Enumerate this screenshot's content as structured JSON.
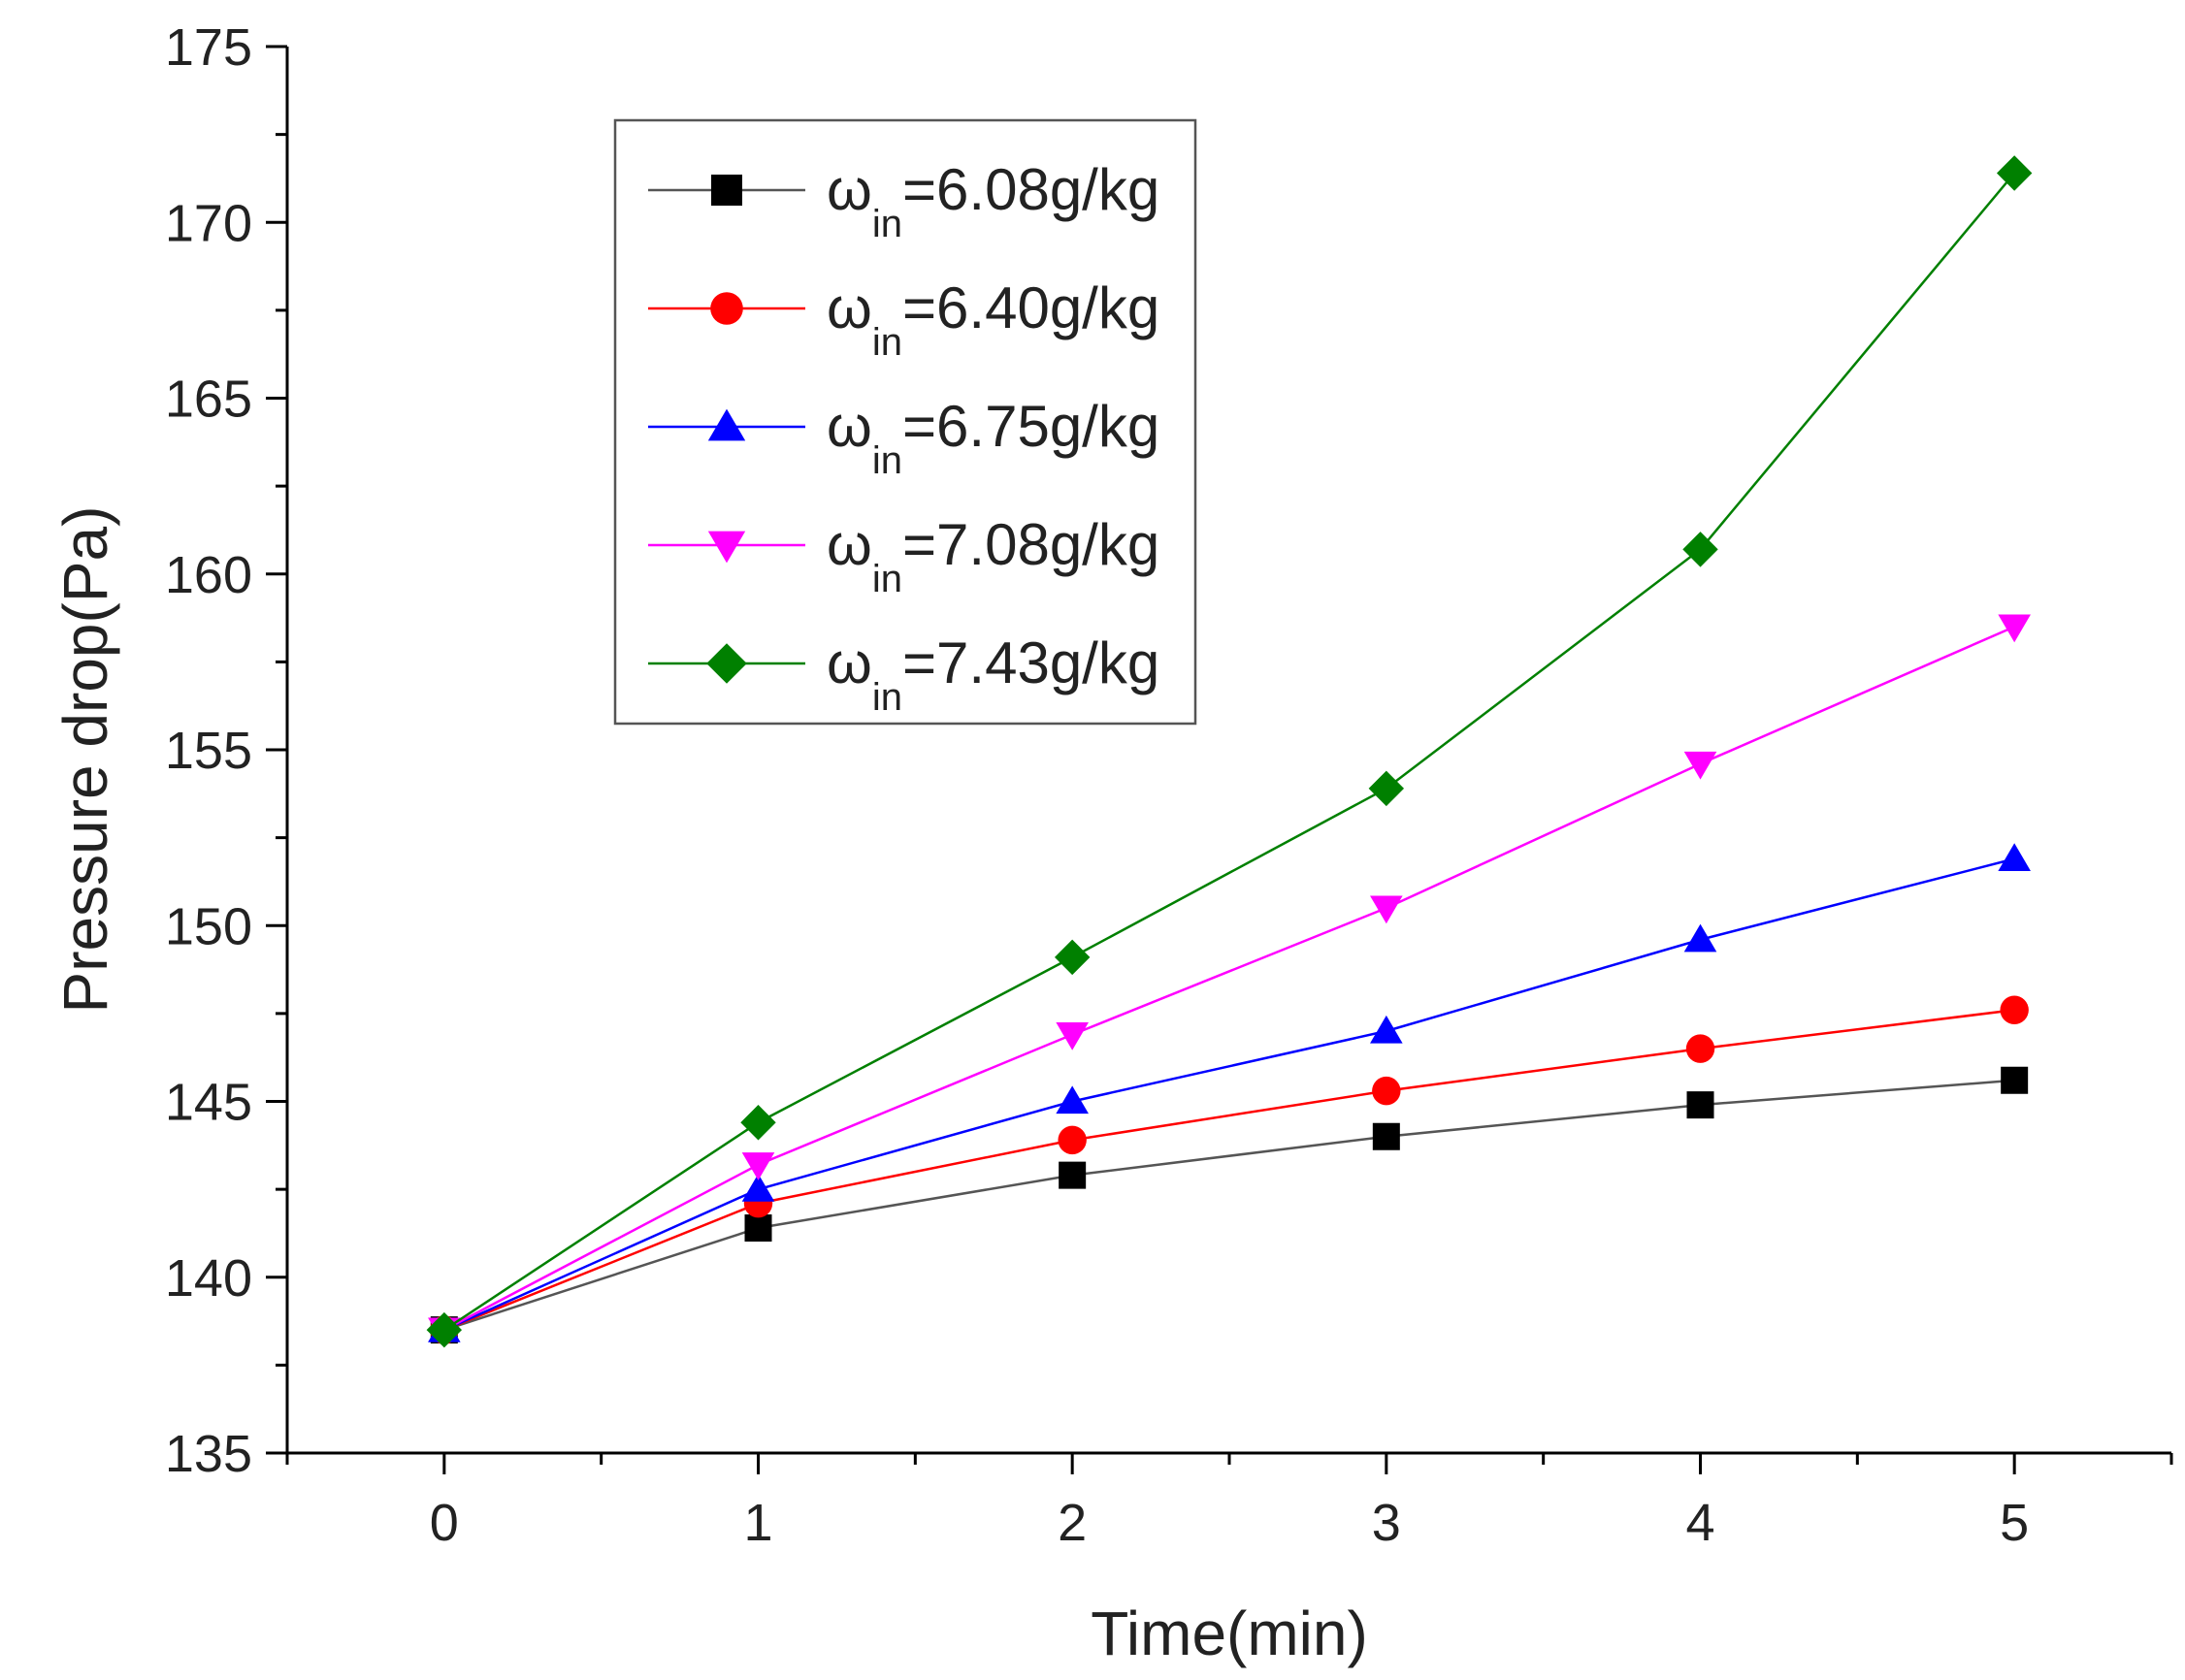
{
  "chart_data": {
    "type": "line",
    "title": "",
    "xlabel": "Time(min)",
    "ylabel": "Pressure drop(Pa)",
    "x": [
      0,
      1,
      2,
      3,
      4,
      5
    ],
    "x_ticks": [
      "0",
      "1",
      "2",
      "3",
      "4",
      "5"
    ],
    "xlim": [
      -0.5,
      5.5
    ],
    "ylim": [
      135,
      175
    ],
    "y_ticks": [
      "135",
      "140",
      "145",
      "150",
      "155",
      "160",
      "165",
      "170",
      "175"
    ],
    "legend_position": "top-left",
    "grid": false,
    "series": [
      {
        "name": "ωin=6.08g/kg",
        "symbol": "ω",
        "subscript": "in",
        "label_value": "=6.08g/kg",
        "marker": "square",
        "color": "#000000",
        "line_color": "#555555",
        "values": [
          138.5,
          141.4,
          142.9,
          144.0,
          144.9,
          145.6
        ]
      },
      {
        "name": "ωin=6.40g/kg",
        "symbol": "ω",
        "subscript": "in",
        "label_value": "=6.40g/kg",
        "marker": "circle",
        "color": "#ff0000",
        "line_color": "#ff0000",
        "values": [
          138.5,
          142.1,
          143.9,
          145.3,
          146.5,
          147.6
        ]
      },
      {
        "name": "ωin=6.75g/kg",
        "symbol": "ω",
        "subscript": "in",
        "label_value": "=6.75g/kg",
        "marker": "triangle-up",
        "color": "#0000ff",
        "line_color": "#0000ff",
        "values": [
          138.5,
          142.5,
          145.0,
          147.0,
          149.6,
          151.9
        ]
      },
      {
        "name": "ωin=7.08g/kg",
        "symbol": "ω",
        "subscript": "in",
        "label_value": "=7.08g/kg",
        "marker": "triangle-down",
        "color": "#ff00ff",
        "line_color": "#ff00ff",
        "values": [
          138.5,
          143.2,
          146.9,
          150.5,
          154.6,
          158.5
        ]
      },
      {
        "name": "ωin=7.43g/kg",
        "symbol": "ω",
        "subscript": "in",
        "label_value": "=7.43g/kg",
        "marker": "diamond",
        "color": "#008000",
        "line_color": "#008000",
        "values": [
          138.5,
          144.4,
          149.1,
          153.9,
          160.7,
          171.4
        ]
      }
    ]
  }
}
